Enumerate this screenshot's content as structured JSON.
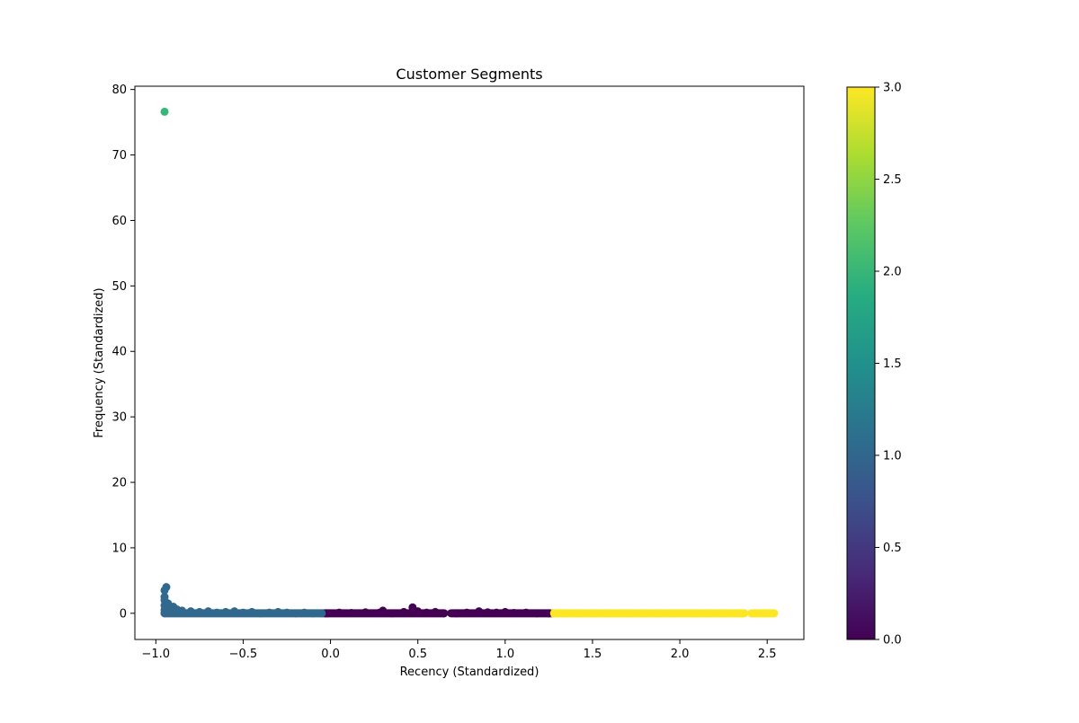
{
  "chart_data": {
    "type": "scatter",
    "title": "Customer Segments",
    "xlabel": "Recency (Standardized)",
    "ylabel": "Frequency (Standardized)",
    "xlim": [
      -1.12,
      2.71
    ],
    "ylim": [
      -4,
      80.5
    ],
    "xticks": [
      -1.0,
      -0.5,
      0.0,
      0.5,
      1.0,
      1.5,
      2.0,
      2.5
    ],
    "xtick_labels": [
      "−1.0",
      "−0.5",
      "0.0",
      "0.5",
      "1.0",
      "1.5",
      "2.0",
      "2.5"
    ],
    "yticks": [
      0,
      10,
      20,
      30,
      40,
      50,
      60,
      70,
      80
    ],
    "ytick_labels": [
      "0",
      "10",
      "20",
      "30",
      "40",
      "50",
      "60",
      "70",
      "80"
    ],
    "grid": false,
    "colorbar": {
      "colormap": "viridis",
      "range": [
        0.0,
        3.0
      ],
      "ticks": [
        0.0,
        0.5,
        1.0,
        1.5,
        2.0,
        2.5,
        3.0
      ],
      "tick_labels": [
        "0.0",
        "0.5",
        "1.0",
        "1.5",
        "2.0",
        "2.5",
        "3.0"
      ]
    },
    "clusters": [
      {
        "cluster": 0,
        "color": "#440154",
        "points": [
          [
            -0.02,
            0.0
          ],
          [
            0.05,
            0.1
          ],
          [
            0.12,
            0.05
          ],
          [
            0.2,
            0.15
          ],
          [
            0.28,
            0.1
          ],
          [
            0.3,
            0.4
          ],
          [
            0.35,
            0.0
          ],
          [
            0.42,
            0.2
          ],
          [
            0.47,
            0.9
          ],
          [
            0.5,
            0.3
          ],
          [
            0.55,
            0.1
          ],
          [
            0.6,
            0.2
          ],
          [
            0.65,
            0.0
          ],
          [
            0.72,
            0.0
          ],
          [
            0.78,
            0.1
          ],
          [
            0.85,
            0.3
          ],
          [
            0.9,
            0.15
          ],
          [
            0.95,
            0.1
          ],
          [
            1.0,
            0.2
          ],
          [
            1.05,
            0.05
          ],
          [
            1.12,
            0.1
          ],
          [
            1.18,
            0.0
          ],
          [
            1.25,
            0.0
          ]
        ]
      },
      {
        "cluster": 1,
        "color": "#30688e",
        "points": [
          [
            -0.95,
            0.0
          ],
          [
            -0.95,
            0.5
          ],
          [
            -0.95,
            1.2
          ],
          [
            -0.95,
            2.0
          ],
          [
            -0.95,
            2.5
          ],
          [
            -0.95,
            3.5
          ],
          [
            -0.94,
            4.0
          ],
          [
            -0.93,
            1.5
          ],
          [
            -0.92,
            0.8
          ],
          [
            -0.9,
            1.0
          ],
          [
            -0.88,
            0.6
          ],
          [
            -0.85,
            0.4
          ],
          [
            -0.8,
            0.3
          ],
          [
            -0.75,
            0.2
          ],
          [
            -0.7,
            0.3
          ],
          [
            -0.65,
            0.1
          ],
          [
            -0.6,
            0.2
          ],
          [
            -0.55,
            0.3
          ],
          [
            -0.5,
            0.1
          ],
          [
            -0.45,
            0.2
          ],
          [
            -0.4,
            0.0
          ],
          [
            -0.35,
            0.1
          ],
          [
            -0.3,
            0.2
          ],
          [
            -0.25,
            0.1
          ],
          [
            -0.2,
            0.0
          ],
          [
            -0.15,
            0.1
          ],
          [
            -0.1,
            0.0
          ],
          [
            -0.05,
            0.0
          ]
        ]
      },
      {
        "cluster": 2,
        "color": "#35b779",
        "points": [
          [
            -0.95,
            76.6
          ]
        ]
      },
      {
        "cluster": 3,
        "color": "#fde725",
        "points": [
          [
            1.28,
            0.0
          ],
          [
            1.35,
            0.0
          ],
          [
            1.42,
            0.0
          ],
          [
            1.5,
            0.0
          ],
          [
            1.58,
            0.0
          ],
          [
            1.65,
            0.0
          ],
          [
            1.72,
            0.0
          ],
          [
            1.8,
            0.0
          ],
          [
            1.88,
            0.0
          ],
          [
            1.95,
            0.0
          ],
          [
            2.02,
            0.0
          ],
          [
            2.1,
            0.0
          ],
          [
            2.18,
            0.0
          ],
          [
            2.25,
            0.0
          ],
          [
            2.32,
            0.0
          ],
          [
            2.36,
            0.0
          ],
          [
            2.42,
            0.0
          ],
          [
            2.48,
            0.0
          ],
          [
            2.53,
            0.0
          ]
        ]
      }
    ],
    "bands": [
      {
        "cluster": 1,
        "color": "#30688e",
        "x_from": -0.95,
        "x_to": -0.03,
        "y": 0.0
      },
      {
        "cluster": 0,
        "color": "#440154",
        "x_from": -0.03,
        "x_to": 0.65,
        "y": 0.0
      },
      {
        "cluster": 0,
        "color": "#440154",
        "x_from": 0.69,
        "x_to": 1.27,
        "y": 0.0
      },
      {
        "cluster": 3,
        "color": "#fde725",
        "x_from": 1.27,
        "x_to": 2.37,
        "y": 0.0
      },
      {
        "cluster": 3,
        "color": "#fde725",
        "x_from": 2.41,
        "x_to": 2.54,
        "y": 0.0
      }
    ]
  }
}
